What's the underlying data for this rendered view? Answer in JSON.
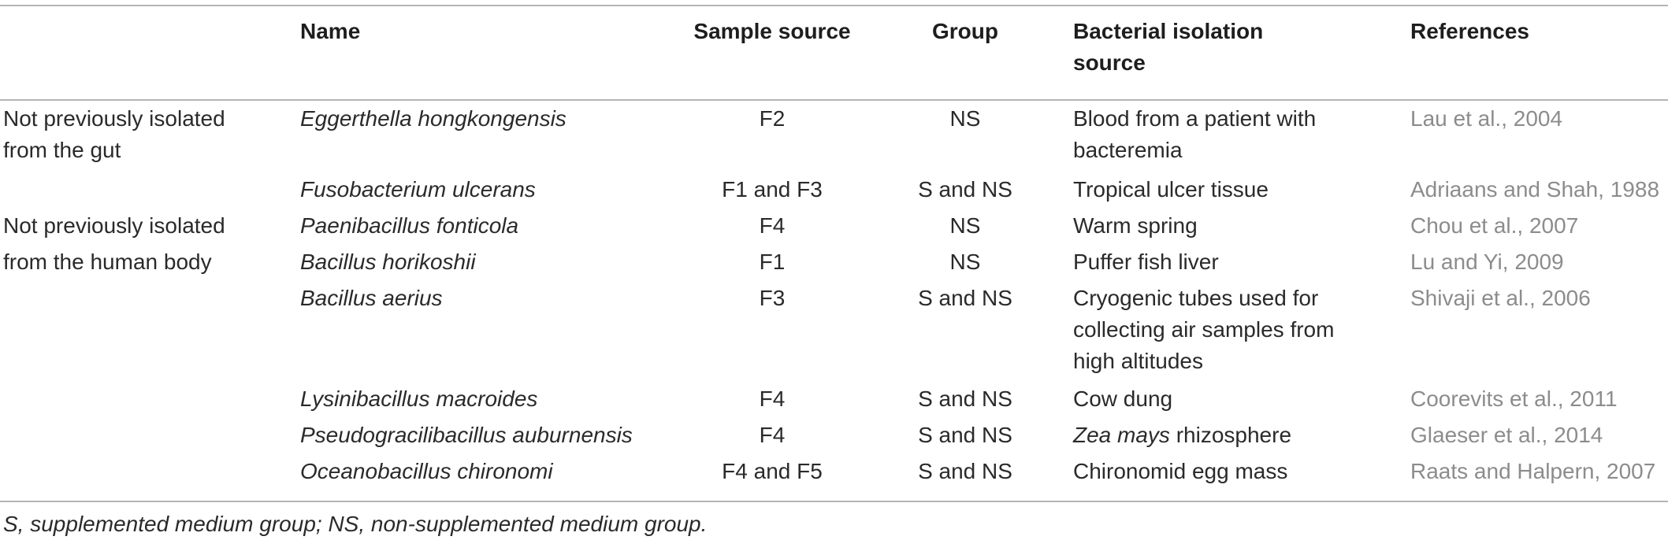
{
  "headers": {
    "name": "Name",
    "sample_source": "Sample source",
    "group": "Group",
    "isolation_line1": "Bacterial isolation",
    "isolation_line2": "source",
    "references": "References"
  },
  "categories": {
    "gut_line1": "Not previously isolated",
    "gut_line2": "from the gut",
    "body_line1": "Not previously isolated",
    "body_line2": "from the human body"
  },
  "rows": [
    {
      "name": "Eggerthella hongkongensis",
      "sample": "F2",
      "group": "NS",
      "iso1": "Blood from a patient with",
      "iso2": "bacteremia",
      "iso3": "",
      "ref": "Lau et al., 2004"
    },
    {
      "name": "Fusobacterium ulcerans",
      "sample": "F1 and F3",
      "group": "S and NS",
      "iso1": "Tropical ulcer tissue",
      "iso2": "",
      "iso3": "",
      "ref": "Adriaans and Shah, 1988"
    },
    {
      "name": "Paenibacillus fonticola",
      "sample": "F4",
      "group": "NS",
      "iso1": "Warm spring",
      "iso2": "",
      "iso3": "",
      "ref": "Chou et al., 2007"
    },
    {
      "name": "Bacillus horikoshii",
      "sample": "F1",
      "group": "NS",
      "iso1": "Puffer fish liver",
      "iso2": "",
      "iso3": "",
      "ref": "Lu and Yi, 2009"
    },
    {
      "name": "Bacillus aerius",
      "sample": "F3",
      "group": "S and NS",
      "iso1": "Cryogenic tubes used for",
      "iso2": "collecting air samples from",
      "iso3": "high altitudes",
      "ref": "Shivaji et al., 2006"
    },
    {
      "name": "Lysinibacillus macroides",
      "sample": "F4",
      "group": "S and NS",
      "iso1": "Cow dung",
      "iso2": "",
      "iso3": "",
      "ref": "Coorevits et al., 2011"
    },
    {
      "name": "Pseudogracilibacillus auburnensis",
      "sample": "F4",
      "group": "S and NS",
      "iso_italic": "Zea mays",
      "iso_rest": " rhizosphere",
      "ref": "Glaeser et al., 2014"
    },
    {
      "name": "Oceanobacillus chironomi",
      "sample": "F4 and F5",
      "group": "S and NS",
      "iso1": "Chironomid egg mass",
      "iso2": "",
      "iso3": "",
      "ref": "Raats and Halpern, 2007"
    }
  ],
  "footnote": "S, supplemented medium group; NS, non-supplemented medium group."
}
